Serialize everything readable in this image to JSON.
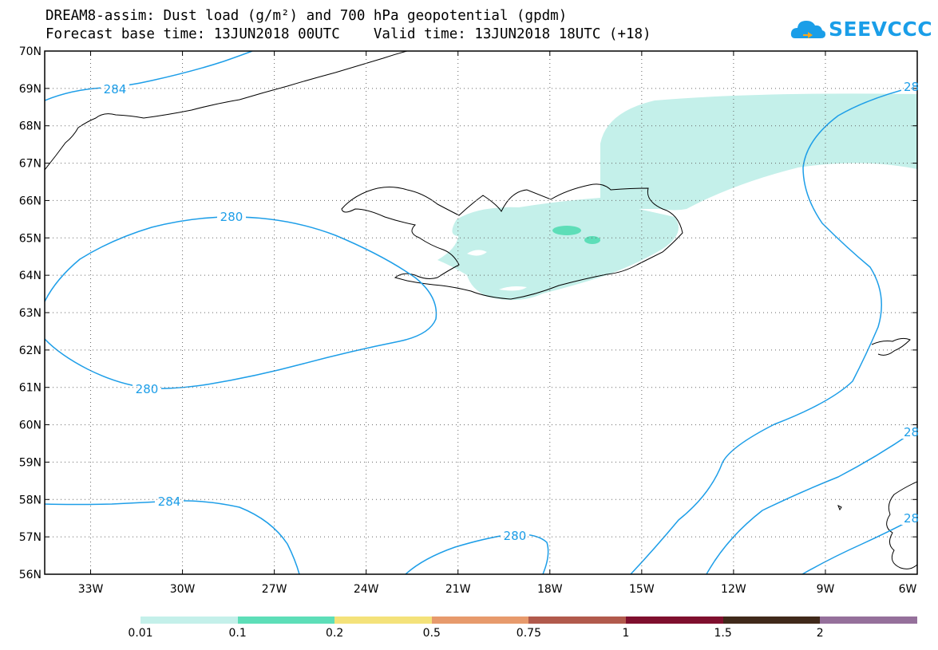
{
  "header": {
    "title_line1": "DREAM8-assim: Dust load (g/m²) and 700 hPa geopotential (gpdm)",
    "title_line2": "Forecast base time: 13JUN2018 00UTC    Valid time: 13JUN2018 18UTC (+18)"
  },
  "logo": {
    "text": "SEEVCCC",
    "icon": "cloud-icon",
    "color": "#1a9ee8",
    "accent": "#f7a61c"
  },
  "map": {
    "lat_labels": [
      "70N",
      "69N",
      "68N",
      "67N",
      "66N",
      "65N",
      "64N",
      "63N",
      "62N",
      "61N",
      "60N",
      "59N",
      "58N",
      "57N",
      "56N"
    ],
    "lon_labels": [
      "33W",
      "30W",
      "27W",
      "24W",
      "21W",
      "18W",
      "15W",
      "12W",
      "9W",
      "6W"
    ],
    "contour_labels": [
      {
        "text": "284"
      },
      {
        "text": "28"
      },
      {
        "text": "280"
      },
      {
        "text": "280"
      },
      {
        "text": "284"
      },
      {
        "text": "280"
      },
      {
        "text": "28"
      },
      {
        "text": "28"
      }
    ],
    "contour_color": "#1d9ee8",
    "dust_color_low": "#c4f0ea",
    "dust_color_mid": "#5ddeb8"
  },
  "colorbar": {
    "labels": [
      "0.01",
      "0.1",
      "0.2",
      "0.5",
      "0.75",
      "1",
      "1.5",
      "2"
    ],
    "colors": [
      "#c4f0ea",
      "#5ddeb8",
      "#f4e27a",
      "#e79a6c",
      "#b15a4c",
      "#7f0f2e",
      "#40291a",
      "#95709b"
    ]
  }
}
